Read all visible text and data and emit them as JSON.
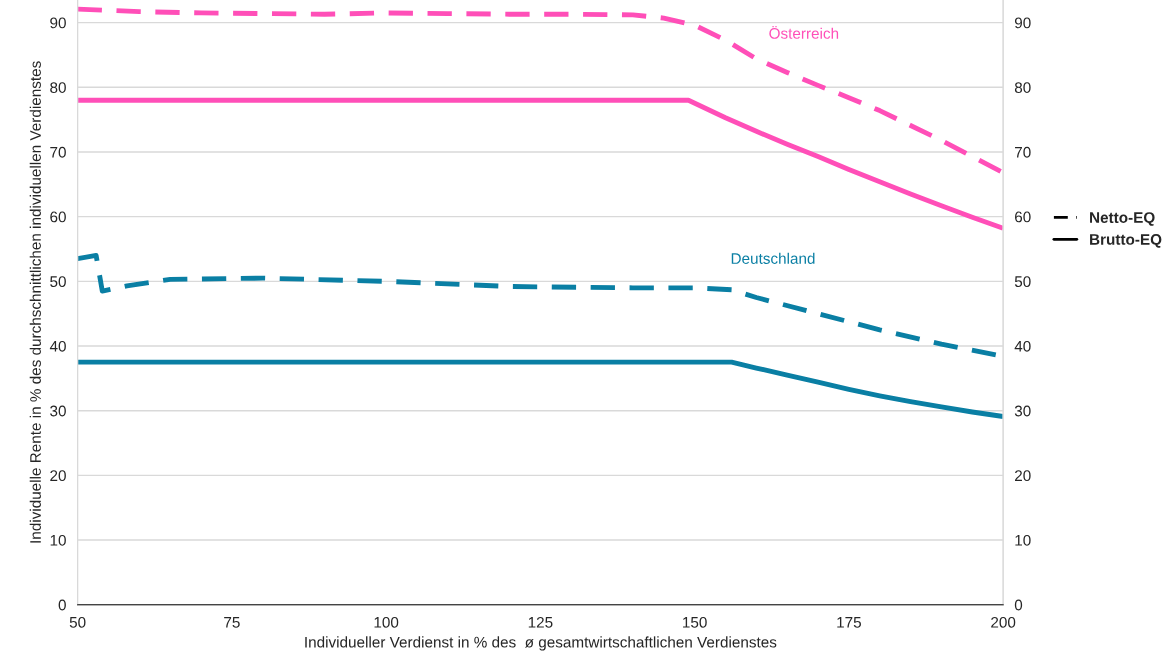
{
  "chart_data": {
    "type": "line",
    "xlabel": "Individueller Verdienst in % des  ø gesamtwirtschaftlichen Verdienstes",
    "ylabel": "Individuelle Rente in % des durchschnittlichen individuellen Verdienstes",
    "series": [
      {
        "name": "Österreich",
        "color": "#ff4fb8",
        "line_style": "dashed",
        "x": [
          50,
          60,
          70,
          80,
          90,
          100,
          110,
          120,
          130,
          140,
          145,
          150,
          155,
          160,
          165,
          170,
          175,
          180,
          185,
          190,
          195,
          200
        ],
        "values": [
          92.1,
          91.7,
          91.5,
          91.4,
          91.3,
          91.5,
          91.4,
          91.3,
          91.3,
          91.2,
          90.7,
          89.6,
          87.3,
          84.4,
          82.3,
          80.3,
          78.4,
          76.4,
          74.1,
          71.8,
          69.3,
          66.8
        ]
      },
      {
        "color": "#ff4fb8",
        "line_style": "solid",
        "x": [
          50,
          149,
          155,
          160,
          165,
          170,
          175,
          180,
          185,
          190,
          195,
          200
        ],
        "values": [
          78,
          78,
          75.3,
          73.2,
          71.2,
          69.3,
          67.3,
          65.4,
          63.5,
          61.7,
          59.9,
          58.2
        ]
      },
      {
        "name": "Deutschland",
        "color": "#0a7fa4",
        "line_style": "dashed",
        "x": [
          50,
          53,
          54,
          58,
          65,
          80,
          100,
          120,
          140,
          150,
          156,
          160,
          170,
          180,
          190,
          200
        ],
        "values": [
          53.5,
          54,
          48.5,
          49.3,
          50.3,
          50.5,
          50,
          49.2,
          49,
          49,
          48.7,
          47.5,
          45,
          42.5,
          40.3,
          38.4
        ]
      },
      {
        "color": "#0a7fa4",
        "line_style": "solid",
        "x": [
          50,
          156,
          160,
          165,
          170,
          175,
          180,
          185,
          190,
          195,
          200
        ],
        "values": [
          37.5,
          37.5,
          36.6,
          35.5,
          34.4,
          33.3,
          32.3,
          31.4,
          30.6,
          29.8,
          29.1
        ]
      }
    ],
    "annotations": [
      "Netto-EQ",
      "Brutto-EQ"
    ],
    "xlim": [
      50,
      200
    ],
    "xticks": [
      50,
      75,
      100,
      125,
      150,
      175,
      200
    ],
    "ylim": [
      0,
      93.5
    ],
    "yticks": [
      0,
      10,
      20,
      30,
      40,
      50,
      60,
      70,
      80,
      90
    ],
    "y2lim": [
      0,
      93.5
    ],
    "y2ticks": [
      0,
      10,
      20,
      30,
      40,
      50,
      60,
      70,
      80,
      90
    ],
    "grid": "y",
    "legend": "right"
  }
}
